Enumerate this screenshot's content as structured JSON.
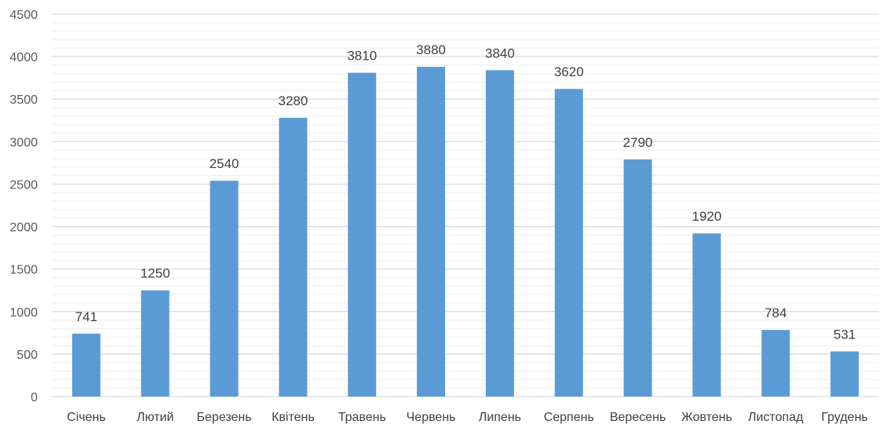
{
  "chart_data": {
    "type": "bar",
    "categories": [
      "Січень",
      "Лютий",
      "Березень",
      "Квітень",
      "Травень",
      "Червень",
      "Липень",
      "Серпень",
      "Вересень",
      "Жовтень",
      "Листопад",
      "Грудень"
    ],
    "series": [
      {
        "values": [
          741,
          1250,
          2540,
          3280,
          3810,
          3880,
          3840,
          3620,
          2790,
          1920,
          784,
          531
        ],
        "color": "#5B9BD5"
      }
    ],
    "ylim": [
      0,
      4500
    ],
    "ytick_step": 500,
    "yticks": [
      "0",
      "500",
      "1000",
      "1500",
      "2000",
      "2500",
      "3000",
      "3500",
      "4000",
      "4500"
    ],
    "data_labels": [
      "741",
      "1250",
      "2540",
      "3280",
      "3810",
      "3880",
      "3840",
      "3620",
      "2790",
      "1920",
      "784",
      "531"
    ],
    "grid": true,
    "legend": "none",
    "title": "",
    "xlabel": "",
    "ylabel": ""
  }
}
